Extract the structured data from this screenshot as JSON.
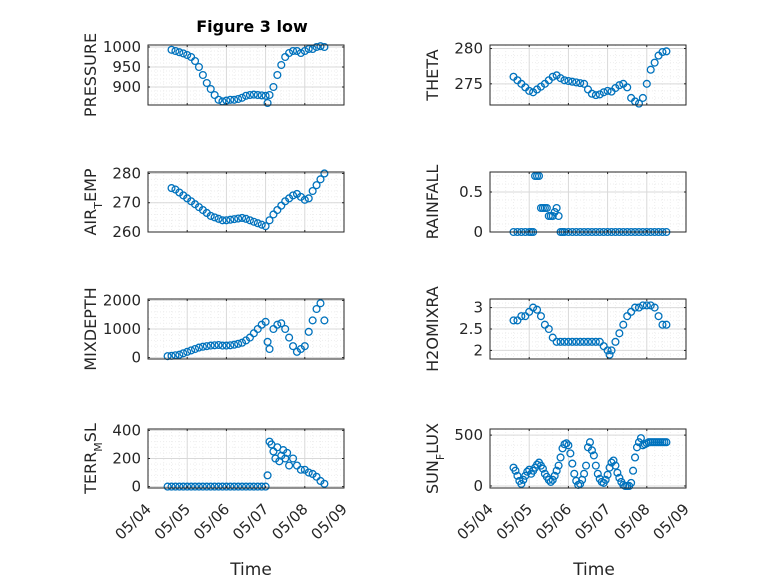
{
  "figure_title": "Figure 3 low",
  "x_ticks": [
    "05/04",
    "05/05",
    "05/06",
    "05/07",
    "05/08",
    "05/09"
  ],
  "x_label": "Time",
  "colors": {
    "marker": "#0072BD",
    "axis": "#262626",
    "grid": "#d9d9d9",
    "minor_grid": "#eeeeee"
  },
  "chart_data": [
    {
      "type": "scatter",
      "ylabel": "PRESSURE",
      "ylim": [
        855,
        1005
      ],
      "yticks": [
        "900",
        "950",
        "1000"
      ],
      "ytick_values": [
        900,
        950,
        1000
      ],
      "xlim": [
        "05/04",
        "05/09"
      ],
      "grid": true,
      "x": [
        0.6,
        0.7,
        0.8,
        0.9,
        1.0,
        1.1,
        1.2,
        1.3,
        1.4,
        1.5,
        1.6,
        1.7,
        1.8,
        1.9,
        2.0,
        2.1,
        2.2,
        2.3,
        2.4,
        2.5,
        2.6,
        2.7,
        2.8,
        2.9,
        3.0,
        3.05,
        3.1,
        3.2,
        3.3,
        3.4,
        3.5,
        3.6,
        3.7,
        3.8,
        3.9,
        4.0,
        4.1,
        4.2,
        4.3,
        4.4,
        4.5
      ],
      "values": [
        993,
        990,
        987,
        984,
        980,
        975,
        965,
        950,
        930,
        910,
        895,
        880,
        868,
        864,
        866,
        868,
        868,
        870,
        873,
        878,
        880,
        881,
        880,
        879,
        878,
        860,
        880,
        900,
        930,
        955,
        975,
        985,
        990,
        990,
        985,
        990,
        995,
        995,
        1000,
        1002,
        1000
      ]
    },
    {
      "type": "scatter",
      "ylabel": "THETA",
      "ylim": [
        272,
        280.5
      ],
      "yticks": [
        "275",
        "280"
      ],
      "ytick_values": [
        275,
        280
      ],
      "xlim": [
        "05/04",
        "05/09"
      ],
      "grid": true,
      "x": [
        0.6,
        0.7,
        0.8,
        0.9,
        1.0,
        1.1,
        1.2,
        1.3,
        1.4,
        1.5,
        1.6,
        1.7,
        1.8,
        1.9,
        2.0,
        2.1,
        2.2,
        2.3,
        2.4,
        2.5,
        2.6,
        2.7,
        2.8,
        2.9,
        3.0,
        3.1,
        3.2,
        3.3,
        3.4,
        3.5,
        3.6,
        3.7,
        3.8,
        3.9,
        4.0,
        4.1,
        4.2,
        4.3,
        4.4,
        4.5
      ],
      "values": [
        276,
        275.5,
        275,
        274.5,
        274,
        273.8,
        274.2,
        274.6,
        275,
        275.5,
        276,
        276.2,
        275.8,
        275.5,
        275.4,
        275.3,
        275.2,
        275.1,
        275,
        274.2,
        273.6,
        273.4,
        273.5,
        273.8,
        274,
        273.9,
        274.4,
        274.8,
        275,
        274.5,
        273,
        272.5,
        272.2,
        273,
        275,
        277,
        278,
        279,
        279.5,
        279.6
      ]
    },
    {
      "type": "scatter",
      "ylabel": "AIR_TEMP",
      "ylabel_parts": [
        "AIR",
        "T",
        "EMP"
      ],
      "ylim": [
        260,
        280.5
      ],
      "yticks": [
        "260",
        "270",
        "280"
      ],
      "ytick_values": [
        260,
        270,
        280
      ],
      "xlim": [
        "05/04",
        "05/09"
      ],
      "grid": true,
      "x": [
        0.6,
        0.7,
        0.8,
        0.9,
        1.0,
        1.1,
        1.2,
        1.3,
        1.4,
        1.5,
        1.6,
        1.7,
        1.8,
        1.9,
        2.0,
        2.1,
        2.2,
        2.3,
        2.4,
        2.5,
        2.6,
        2.7,
        2.8,
        2.9,
        3.0,
        3.1,
        3.2,
        3.3,
        3.4,
        3.5,
        3.6,
        3.7,
        3.8,
        3.9,
        4.0,
        4.1,
        4.2,
        4.3,
        4.4,
        4.5
      ],
      "values": [
        275,
        274.5,
        273.5,
        272.5,
        271.5,
        270.5,
        269.5,
        268.5,
        267.5,
        266.5,
        265.5,
        265,
        264.5,
        264,
        264,
        264.2,
        264.4,
        264.6,
        264.8,
        264.5,
        264,
        263.5,
        263,
        262.5,
        262,
        264,
        266,
        267.5,
        269,
        270.5,
        271.5,
        272.5,
        273,
        272,
        271,
        271.5,
        274,
        276,
        278,
        280
      ]
    },
    {
      "type": "scatter",
      "ylabel": "RAINFALL",
      "ylim": [
        0,
        0.75
      ],
      "yticks": [
        "0",
        "0.5"
      ],
      "ytick_values": [
        0,
        0.5
      ],
      "xlim": [
        "05/04",
        "05/09"
      ],
      "grid": true,
      "x": [
        0.6,
        0.7,
        0.8,
        0.9,
        1.0,
        1.05,
        1.1,
        1.15,
        1.2,
        1.25,
        1.3,
        1.35,
        1.4,
        1.45,
        1.5,
        1.55,
        1.6,
        1.65,
        1.7,
        1.75,
        1.8,
        1.85,
        1.9,
        2.0,
        2.1,
        2.2,
        2.3,
        2.4,
        2.5,
        2.6,
        2.7,
        2.8,
        2.9,
        3.0,
        3.1,
        3.2,
        3.3,
        3.4,
        3.5,
        3.6,
        3.7,
        3.8,
        3.9,
        4.0,
        4.1,
        4.2,
        4.3,
        4.4,
        4.5
      ],
      "values": [
        0,
        0,
        0,
        0,
        0,
        0,
        0,
        0.7,
        0.7,
        0.7,
        0.3,
        0.3,
        0.3,
        0.3,
        0.2,
        0.2,
        0.2,
        0.25,
        0.3,
        0.2,
        0,
        0,
        0,
        0,
        0,
        0,
        0,
        0,
        0,
        0,
        0,
        0,
        0,
        0,
        0,
        0,
        0,
        0,
        0,
        0,
        0,
        0,
        0,
        0,
        0,
        0,
        0,
        0,
        0
      ]
    },
    {
      "type": "scatter",
      "ylabel": "MIXDEPTH",
      "ylim": [
        -50,
        2050
      ],
      "yticks": [
        "0",
        "1000",
        "2000"
      ],
      "ytick_values": [
        0,
        1000,
        2000
      ],
      "xlim": [
        "05/04",
        "05/09"
      ],
      "grid": true,
      "x": [
        0.5,
        0.6,
        0.7,
        0.8,
        0.9,
        1.0,
        1.1,
        1.2,
        1.3,
        1.4,
        1.5,
        1.6,
        1.7,
        1.8,
        1.9,
        2.0,
        2.1,
        2.2,
        2.3,
        2.4,
        2.5,
        2.6,
        2.7,
        2.8,
        2.9,
        3.0,
        3.05,
        3.1,
        3.2,
        3.3,
        3.4,
        3.5,
        3.6,
        3.7,
        3.8,
        3.9,
        4.0,
        4.1,
        4.2,
        4.3,
        4.4,
        4.5
      ],
      "values": [
        50,
        60,
        80,
        100,
        150,
        200,
        250,
        300,
        350,
        380,
        400,
        420,
        430,
        440,
        420,
        420,
        430,
        450,
        480,
        520,
        600,
        700,
        850,
        1000,
        1150,
        1250,
        550,
        300,
        1000,
        1150,
        1200,
        1000,
        700,
        400,
        200,
        300,
        400,
        900,
        1300,
        1700,
        1900,
        1300
      ]
    },
    {
      "type": "scatter",
      "ylabel": "H2OMIXRA",
      "ylim": [
        1.8,
        3.2
      ],
      "yticks": [
        "2",
        "2.5",
        "3"
      ],
      "ytick_values": [
        2,
        2.5,
        3
      ],
      "xlim": [
        "05/04",
        "05/09"
      ],
      "grid": true,
      "x": [
        0.6,
        0.7,
        0.8,
        0.9,
        1.0,
        1.1,
        1.2,
        1.3,
        1.4,
        1.5,
        1.6,
        1.7,
        1.8,
        1.9,
        2.0,
        2.1,
        2.2,
        2.3,
        2.4,
        2.5,
        2.6,
        2.7,
        2.8,
        2.9,
        3.0,
        3.05,
        3.1,
        3.2,
        3.3,
        3.4,
        3.5,
        3.6,
        3.7,
        3.8,
        3.9,
        4.0,
        4.1,
        4.2,
        4.3,
        4.4,
        4.5
      ],
      "values": [
        2.7,
        2.7,
        2.8,
        2.8,
        2.9,
        3.0,
        2.95,
        2.8,
        2.6,
        2.5,
        2.3,
        2.2,
        2.2,
        2.2,
        2.2,
        2.2,
        2.2,
        2.2,
        2.2,
        2.2,
        2.2,
        2.2,
        2.2,
        2.1,
        2.0,
        1.9,
        2.0,
        2.2,
        2.4,
        2.6,
        2.8,
        2.9,
        3.0,
        3.0,
        3.05,
        3.05,
        3.05,
        3.0,
        2.8,
        2.6,
        2.6
      ]
    },
    {
      "type": "scatter",
      "ylabel": "TERR_MSL",
      "ylabel_parts": [
        "TERR",
        "M",
        "SL"
      ],
      "ylim": [
        -10,
        410
      ],
      "yticks": [
        "0",
        "200",
        "400"
      ],
      "ytick_values": [
        0,
        200,
        400
      ],
      "xlim": [
        "05/04",
        "05/09"
      ],
      "grid": true,
      "x": [
        0.5,
        0.6,
        0.7,
        0.8,
        0.9,
        1.0,
        1.1,
        1.2,
        1.3,
        1.4,
        1.5,
        1.6,
        1.7,
        1.8,
        1.9,
        2.0,
        2.1,
        2.2,
        2.3,
        2.4,
        2.5,
        2.6,
        2.7,
        2.8,
        2.9,
        3.0,
        3.05,
        3.1,
        3.15,
        3.2,
        3.25,
        3.3,
        3.35,
        3.4,
        3.45,
        3.5,
        3.55,
        3.6,
        3.7,
        3.8,
        3.9,
        4.0,
        4.1,
        4.2,
        4.3,
        4.4,
        4.5
      ],
      "values": [
        0,
        0,
        0,
        0,
        0,
        0,
        0,
        0,
        0,
        0,
        0,
        0,
        0,
        0,
        0,
        0,
        0,
        0,
        0,
        0,
        0,
        0,
        0,
        0,
        0,
        0,
        80,
        320,
        300,
        250,
        200,
        280,
        180,
        220,
        260,
        200,
        240,
        150,
        200,
        150,
        120,
        120,
        100,
        90,
        70,
        40,
        20
      ]
    },
    {
      "type": "scatter",
      "ylabel": "SUN_FLUX",
      "ylabel_parts": [
        "SUN",
        "F",
        "LUX"
      ],
      "ylim": [
        -20,
        560
      ],
      "yticks": [
        "0",
        "500"
      ],
      "ytick_values": [
        0,
        500
      ],
      "xlim": [
        "05/04",
        "05/09"
      ],
      "grid": true,
      "x": [
        0.6,
        0.65,
        0.7,
        0.75,
        0.8,
        0.85,
        0.9,
        0.95,
        1.0,
        1.05,
        1.1,
        1.15,
        1.2,
        1.25,
        1.3,
        1.35,
        1.4,
        1.45,
        1.5,
        1.55,
        1.6,
        1.65,
        1.7,
        1.75,
        1.8,
        1.85,
        1.9,
        1.95,
        2.0,
        2.05,
        2.1,
        2.15,
        2.2,
        2.25,
        2.3,
        2.35,
        2.4,
        2.45,
        2.5,
        2.55,
        2.6,
        2.65,
        2.7,
        2.75,
        2.8,
        2.85,
        2.9,
        2.95,
        3.0,
        3.05,
        3.1,
        3.15,
        3.2,
        3.25,
        3.3,
        3.35,
        3.4,
        3.45,
        3.5,
        3.55,
        3.6,
        3.65,
        3.7,
        3.75,
        3.8,
        3.85,
        3.9,
        3.95,
        4.0,
        4.05,
        4.1,
        4.15,
        4.2,
        4.25,
        4.3,
        4.35,
        4.4,
        4.45,
        4.5
      ],
      "values": [
        180,
        150,
        100,
        50,
        20,
        60,
        100,
        140,
        160,
        120,
        150,
        180,
        210,
        230,
        200,
        170,
        120,
        90,
        60,
        40,
        60,
        100,
        150,
        200,
        280,
        370,
        410,
        420,
        400,
        320,
        220,
        120,
        50,
        10,
        20,
        60,
        120,
        200,
        380,
        430,
        350,
        300,
        200,
        120,
        70,
        40,
        30,
        60,
        110,
        180,
        230,
        250,
        200,
        130,
        80,
        40,
        10,
        0,
        0,
        0,
        30,
        150,
        280,
        380,
        430,
        470,
        400,
        410,
        420,
        430,
        430,
        430,
        430,
        430,
        430,
        430,
        430,
        430,
        430
      ]
    }
  ]
}
